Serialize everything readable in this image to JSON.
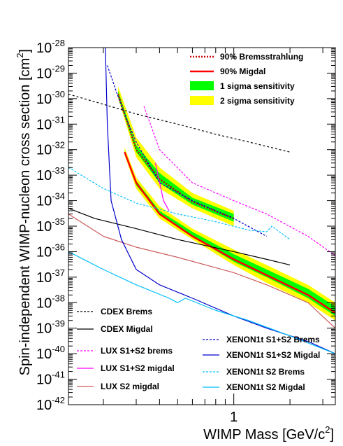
{
  "chart_data": {
    "type": "line",
    "title": "",
    "xlabel": "WIMP Mass [GeV/c",
    "xlabel_sup": "2",
    "xlabel_end": "]",
    "ylabel": "Spin-independent WIMP-nucleon cross section [cm",
    "ylabel_sup": "2",
    "ylabel_end": "]",
    "xscale": "log",
    "yscale": "log",
    "xlim": [
      0.13,
      3.5
    ],
    "ylim": [
      1e-42,
      1e-28
    ],
    "x_tick_labels": [
      {
        "value": 1,
        "label": "1"
      }
    ],
    "y_tick_labels": [
      {
        "exp": -28,
        "base": "10",
        "sup": "-28"
      },
      {
        "exp": -29,
        "base": "10",
        "sup": "-29"
      },
      {
        "exp": -30,
        "base": "10",
        "sup": "-30"
      },
      {
        "exp": -31,
        "base": "10",
        "sup": "-31"
      },
      {
        "exp": -32,
        "base": "10",
        "sup": "-32"
      },
      {
        "exp": -33,
        "base": "10",
        "sup": "-33"
      },
      {
        "exp": -34,
        "base": "10",
        "sup": "-34"
      },
      {
        "exp": -35,
        "base": "10",
        "sup": "-35"
      },
      {
        "exp": -36,
        "base": "10",
        "sup": "-36"
      },
      {
        "exp": -37,
        "base": "10",
        "sup": "-37"
      },
      {
        "exp": -38,
        "base": "10",
        "sup": "-38"
      },
      {
        "exp": -39,
        "base": "10",
        "sup": "-39"
      },
      {
        "exp": -40,
        "base": "10",
        "sup": "-40"
      },
      {
        "exp": -41,
        "base": "10",
        "sup": "-41"
      },
      {
        "exp": -42,
        "base": "10",
        "sup": "-42"
      }
    ],
    "grid": false,
    "legend_top": {
      "placement": "top-right",
      "entries": [
        {
          "label": "90% Bremsstrahlung",
          "symbol": "dotted-line",
          "color": "#cc0000"
        },
        {
          "label": "90% Migdal",
          "symbol": "solid-line",
          "color": "#ff0000"
        },
        {
          "label": "1 sigma sensitivity",
          "symbol": "box",
          "color": "#00ff00"
        },
        {
          "label": "2 sigma sensitivity",
          "symbol": "box",
          "color": "#ffff00"
        }
      ]
    },
    "legend_bottom": {
      "placement": "bottom",
      "entries": [
        {
          "label": "CDEX Brems",
          "symbol": "dashed-line",
          "color": "#000000"
        },
        {
          "label": "CDEX Migdal",
          "symbol": "solid-line",
          "color": "#000000"
        },
        {
          "label": "LUX S1+S2 brems",
          "symbol": "dashed-line",
          "color": "#ff00ff"
        },
        {
          "label": "LUX S1+S2 migdal",
          "symbol": "solid-line",
          "color": "#ff00ff"
        },
        {
          "label": "LUX S2 migdal",
          "symbol": "solid-line",
          "color": "#cd5c5c"
        },
        {
          "label": "XENON1t S1+S2 Brems",
          "symbol": "dashed-line",
          "color": "#0000cc"
        },
        {
          "label": "XENON1t S1+S2 Migdal",
          "symbol": "solid-line",
          "color": "#0000cc"
        },
        {
          "label": "XENON1t S2 Brems",
          "symbol": "dashed-line",
          "color": "#00bfff"
        },
        {
          "label": "XENON1t S2 Migdal",
          "symbol": "solid-line",
          "color": "#00bfff"
        }
      ]
    },
    "bands": [
      {
        "name": "Bremsstrahlung 2 sigma",
        "color": "#ffff00",
        "x": [
          0.24,
          0.3,
          0.4,
          0.6,
          1.0
        ],
        "upper": [
          3e-30,
          3e-32,
          2e-33,
          2e-34,
          4e-35
        ],
        "lower": [
          1e-30,
          5e-33,
          3e-34,
          5e-35,
          1e-35
        ]
      },
      {
        "name": "Bremsstrahlung 1 sigma",
        "color": "#00ff00",
        "x": [
          0.24,
          0.3,
          0.4,
          0.6,
          1.0
        ],
        "upper": [
          2e-30,
          1.5e-32,
          1.2e-33,
          1.3e-34,
          3e-35
        ],
        "lower": [
          1.2e-30,
          8e-33,
          5e-34,
          7e-35,
          1.5e-35
        ]
      },
      {
        "name": "Migdal 2 sigma",
        "color": "#ffff00",
        "x": [
          0.26,
          0.3,
          0.4,
          0.6,
          1.0,
          1.5,
          2.5,
          3.5
        ],
        "upper": [
          1.2e-32,
          8e-34,
          6e-35,
          8e-36,
          1.2e-36,
          3e-37,
          5e-38,
          1e-38
        ],
        "lower": [
          6e-33,
          3e-34,
          2e-35,
          3e-36,
          3e-37,
          6e-38,
          1e-38,
          2e-39
        ]
      },
      {
        "name": "Migdal 1 sigma",
        "color": "#00ff00",
        "x": [
          0.26,
          0.3,
          0.4,
          0.6,
          1.0,
          1.5,
          2.5,
          3.5
        ],
        "upper": [
          9e-33,
          6e-34,
          4e-35,
          6e-36,
          8e-37,
          2e-37,
          3.5e-38,
          7e-39
        ],
        "lower": [
          7e-33,
          4e-34,
          3e-35,
          4e-36,
          4e-37,
          1e-37,
          1.5e-38,
          3e-39
        ]
      }
    ],
    "series": [
      {
        "name": "90% Bremsstrahlung",
        "color": "#cc0000",
        "dash": "2,2",
        "width": 2.5,
        "x": [
          0.24,
          0.3,
          0.4,
          0.6,
          1.0
        ],
        "y": [
          1.5e-30,
          1e-32,
          7e-34,
          9e-35,
          2e-35
        ]
      },
      {
        "name": "90% Migdal",
        "color": "#ff0000",
        "dash": "",
        "width": 2.5,
        "x": [
          0.26,
          0.3,
          0.4,
          0.6,
          1.0,
          1.5,
          2.5,
          3.5
        ],
        "y": [
          8e-33,
          5e-34,
          3e-35,
          4e-36,
          5e-37,
          1.2e-37,
          2e-38,
          4e-39
        ]
      },
      {
        "name": "CDEX Brems",
        "color": "#000000",
        "dash": "3,3",
        "width": 1.2,
        "x": [
          0.13,
          0.2,
          0.3,
          0.5,
          0.8,
          1.2,
          2.0
        ],
        "y": [
          1.5e-30,
          6e-31,
          2.5e-31,
          1e-31,
          4e-32,
          2e-32,
          8e-33
        ]
      },
      {
        "name": "CDEX Migdal",
        "color": "#000000",
        "dash": "",
        "width": 1.2,
        "x": [
          0.13,
          0.18,
          0.3,
          0.5,
          1.0,
          1.5,
          2.0
        ],
        "y": [
          5e-35,
          2e-35,
          8e-36,
          3e-36,
          1e-36,
          5e-37,
          3e-37
        ]
      },
      {
        "name": "LUX S1+S2 brems",
        "color": "#ff00ff",
        "dash": "3,2",
        "width": 1.2,
        "x": [
          0.33,
          0.4,
          0.6,
          1.0,
          1.5,
          2.5,
          3.5
        ],
        "y": [
          5e-31,
          1e-32,
          5e-34,
          1e-34,
          3e-35,
          4e-36,
          7e-37
        ]
      },
      {
        "name": "LUX S1+S2 migdal",
        "color": "#ff00ff",
        "dash": "",
        "width": 1.2,
        "x": [
          0.38,
          0.42,
          0.45
        ],
        "y": [
          3e-33,
          1e-34,
          4e-35
        ]
      },
      {
        "name": "LUX S2 migdal",
        "color": "#cd5c5c",
        "dash": "",
        "width": 1.2,
        "x": [
          0.13,
          0.2,
          0.3,
          0.5,
          1.0,
          1.5,
          2.5,
          3.5
        ],
        "y": [
          3e-35,
          4e-36,
          1.5e-36,
          6e-37,
          1.5e-37,
          5e-38,
          1e-38,
          1e-39
        ]
      },
      {
        "name": "XENON1t S1+S2 Brems",
        "color": "#0000cc",
        "dash": "3,2",
        "width": 1.2,
        "x": [
          0.21,
          0.25,
          0.3,
          0.4,
          0.6,
          1.0,
          1.5
        ],
        "y": [
          2e-29,
          5e-31,
          2e-32,
          5e-34,
          1e-34,
          2e-35,
          4e-36
        ]
      },
      {
        "name": "XENON1t S1+S2 Migdal",
        "color": "#0000cc",
        "dash": "",
        "width": 1.2,
        "x": [
          0.205,
          0.21,
          0.22,
          0.25,
          0.3,
          0.4,
          0.6,
          1.0,
          1.5,
          2.5,
          3.5
        ],
        "y": [
          1e-28,
          1e-31,
          1e-34,
          3e-36,
          2e-37,
          5e-38,
          1.5e-38,
          3e-39,
          1e-39,
          3e-40,
          1e-40
        ]
      },
      {
        "name": "XENON1t S2 Brems",
        "color": "#00bfff",
        "dash": "3,2",
        "width": 1.2,
        "x": [
          0.13,
          0.2,
          0.3,
          0.5,
          0.8,
          1.2,
          1.5,
          1.6,
          2.0
        ],
        "y": [
          2e-33,
          3e-34,
          8e-35,
          3e-35,
          1.5e-35,
          7e-36,
          6e-36,
          1e-35,
          3e-36
        ]
      },
      {
        "name": "XENON1t S2 Migdal",
        "color": "#00bfff",
        "dash": "",
        "width": 1.2,
        "x": [
          0.13,
          0.2,
          0.3,
          0.45,
          0.5,
          0.55,
          0.8,
          1.2,
          2.0,
          3.5
        ],
        "y": [
          1e-36,
          2e-37,
          5e-38,
          1.5e-38,
          1e-38,
          1.5e-38,
          5e-39,
          2e-39,
          5e-40,
          1e-40
        ]
      }
    ]
  }
}
